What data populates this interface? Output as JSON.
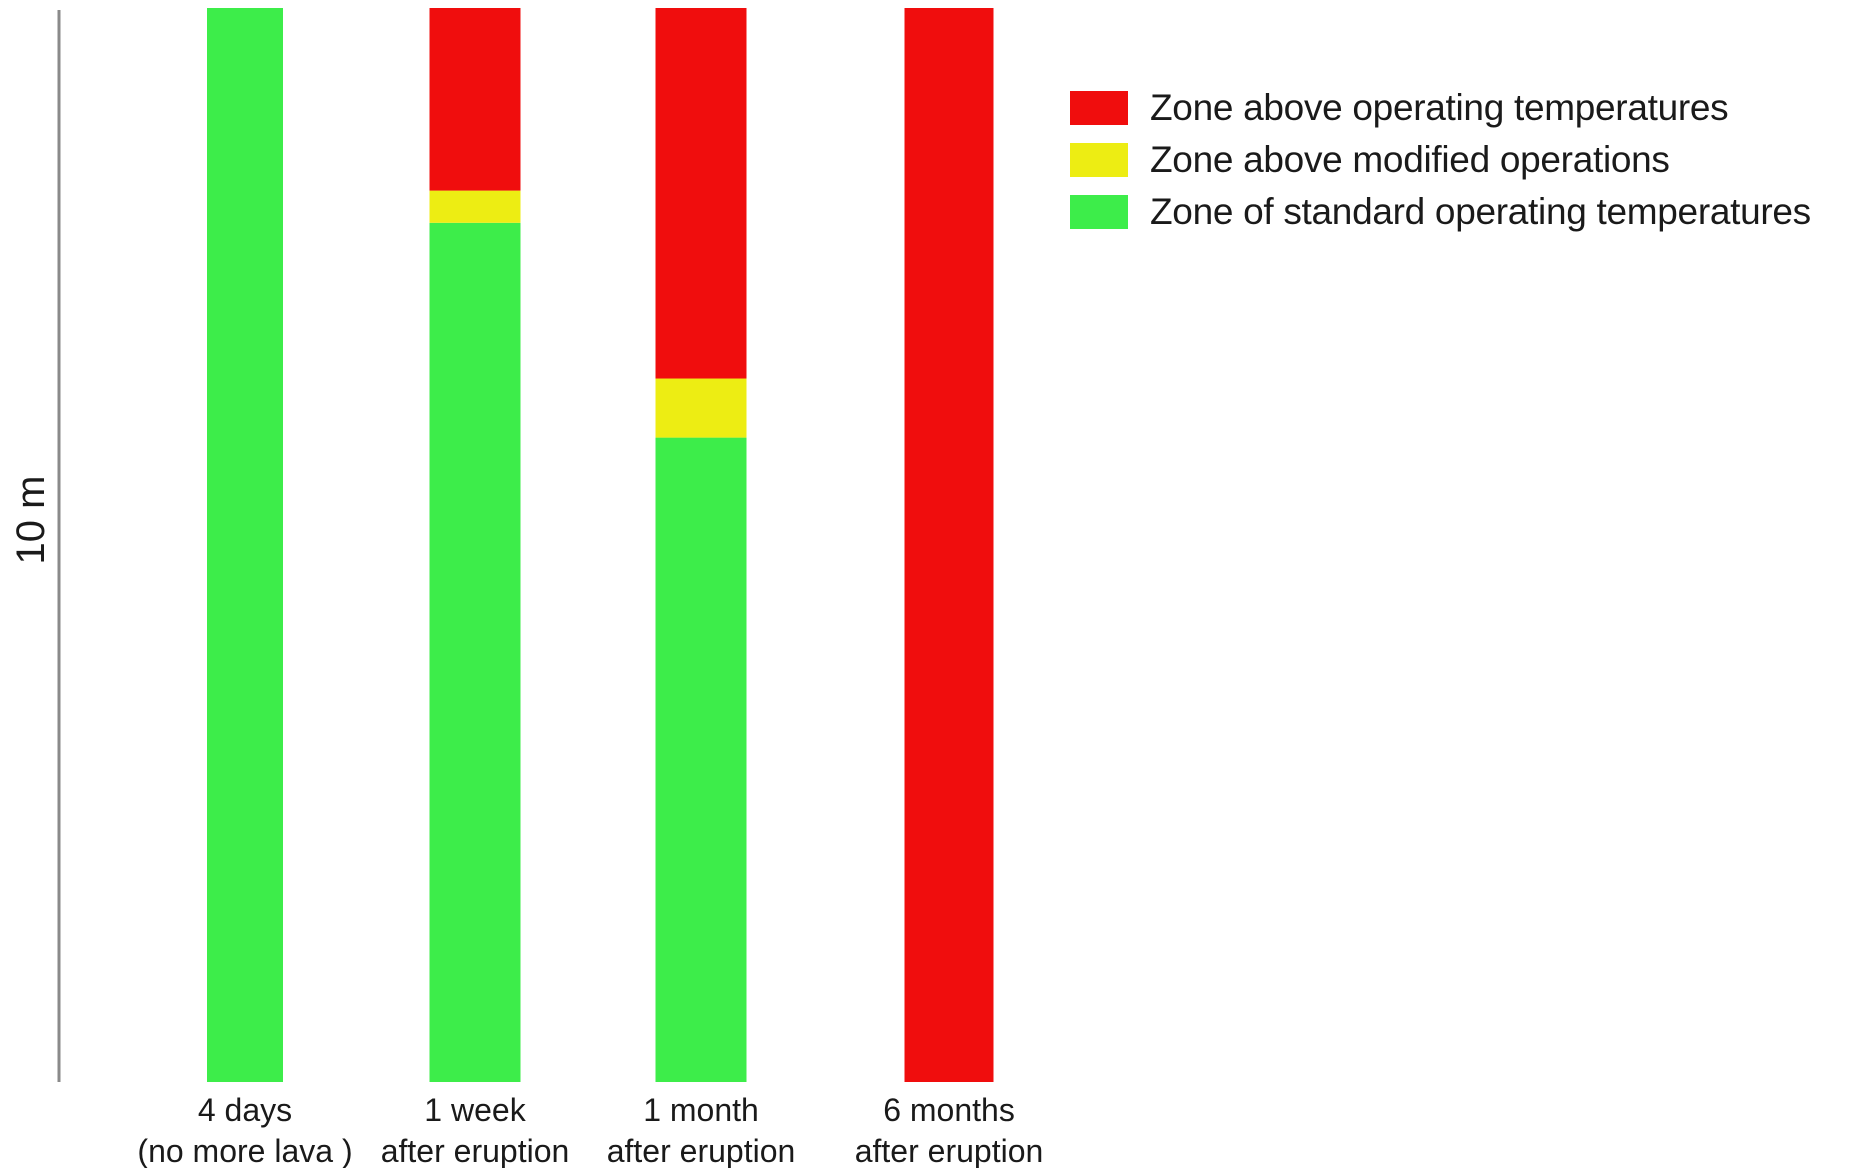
{
  "chart_data": {
    "type": "bar",
    "stacked": true,
    "orientation": "vertical",
    "ylabel": "10 m",
    "ylim": [
      0,
      10
    ],
    "grid": false,
    "legend_position": "top-right",
    "categories": [
      {
        "line1": "4 days",
        "line2": "(no more lava )"
      },
      {
        "line1": "1 week",
        "line2": "after eruption"
      },
      {
        "line1": "1 month",
        "line2": "after eruption"
      },
      {
        "line1": "6 months",
        "line2": "after eruption"
      }
    ],
    "series": [
      {
        "name": "Zone of standard operating temperatures",
        "color": "#3ded4a",
        "values": [
          10,
          8.0,
          6.0,
          0
        ]
      },
      {
        "name": "Zone above modified operations",
        "color": "#eded13",
        "values": [
          0,
          0.3,
          0.55,
          0
        ]
      },
      {
        "name": "Zone above operating temperatures",
        "color": "#f00d0d",
        "values": [
          0,
          1.7,
          3.45,
          10
        ]
      }
    ],
    "legend_order": [
      2,
      1,
      0
    ]
  }
}
